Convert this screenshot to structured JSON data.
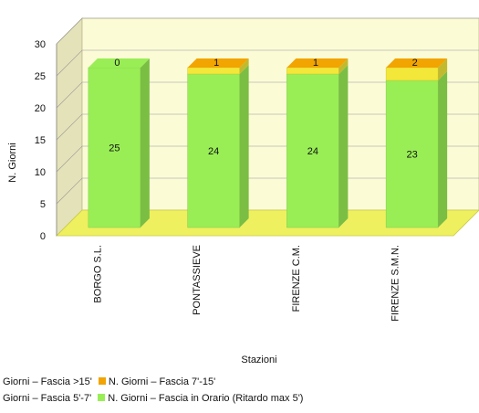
{
  "chart_data": {
    "type": "bar",
    "stacked": true,
    "three_d": true,
    "categories": [
      "BORGO S.L.",
      "PONTASSIEVE",
      "FIRENZE C.M.",
      "FIRENZE S.M.N."
    ],
    "series": [
      {
        "name": "N. Giorni – Fascia in Orario (Ritardo max 5')",
        "color": "#99ee55",
        "values": [
          25,
          24,
          24,
          23
        ]
      },
      {
        "name": "N. Giorni – Fascia 5'-7'",
        "color": "#f3e83a",
        "values": [
          0,
          1,
          1,
          2
        ]
      },
      {
        "name": "N. Giorni – Fascia 7'-15'",
        "color": "#f2a400",
        "values": [
          0,
          0,
          0,
          0
        ]
      },
      {
        "name": "N. Giorni – Fascia >15'",
        "color": "#e04030",
        "values": [
          0,
          0,
          0,
          0
        ]
      }
    ],
    "xlabel": "Stazioni",
    "ylabel": "N. Giorni",
    "ylim": [
      0,
      30
    ],
    "yticks": [
      0,
      5,
      10,
      15,
      20,
      25,
      30
    ],
    "grid": true,
    "legend_position": "bottom"
  },
  "legend": {
    "row1": [
      {
        "label": "N. Giorni – Fascia >15'",
        "color": "#e04030"
      },
      {
        "label": "N. Giorni – Fascia 7'-15'",
        "color": "#f2a400"
      }
    ],
    "row2": [
      {
        "label": "N. Giorni – Fascia 5'-7'",
        "color": "#f3e83a"
      },
      {
        "label": "N. Giorni – Fascia in Orario (Ritardo max 5')",
        "color": "#99ee55"
      }
    ]
  },
  "colors": {
    "wall": "#fbfbd6",
    "side_wall": "#e4e2b8",
    "floor": "#eef060",
    "grid": "#999999"
  }
}
